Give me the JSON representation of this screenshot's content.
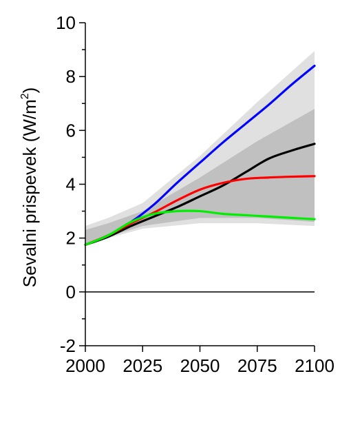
{
  "chart_data": {
    "type": "line",
    "title": "",
    "xlabel": "",
    "ylabel": "Sevalni prispevek (W/m",
    "ylabel_superscript": "2",
    "ylabel_close": ")",
    "xlim": [
      2000,
      2100
    ],
    "ylim": [
      -2,
      10
    ],
    "x_ticks": [
      2000,
      2025,
      2050,
      2075,
      2100
    ],
    "x_tick_labels": [
      "2000",
      "2025",
      "2050",
      "2075",
      "2100"
    ],
    "y_ticks": [
      -2,
      0,
      2,
      4,
      6,
      8,
      10
    ],
    "y_tick_labels": [
      "-2",
      "0",
      "2",
      "4",
      "6",
      "8",
      "10"
    ],
    "zero_line": true,
    "grid": false,
    "legend": "none",
    "bands": [
      {
        "color": "#e0e0e0",
        "x": [
          2000,
          2010,
          2025,
          2050,
          2075,
          2100
        ],
        "lower": [
          1.75,
          2.0,
          2.35,
          2.55,
          2.55,
          2.45
        ],
        "upper": [
          2.45,
          2.75,
          3.3,
          5.05,
          7.05,
          8.95
        ]
      },
      {
        "color": "#c0c0c0",
        "x": [
          2000,
          2010,
          2025,
          2050,
          2075,
          2100
        ],
        "lower": [
          1.8,
          2.05,
          2.45,
          2.75,
          2.75,
          2.6
        ],
        "upper": [
          2.3,
          2.55,
          3.0,
          4.25,
          5.6,
          6.8
        ]
      }
    ],
    "series": [
      {
        "color": "#0000ff",
        "x": [
          2000,
          2010,
          2020,
          2030,
          2040,
          2050,
          2060,
          2070,
          2080,
          2090,
          2100
        ],
        "y": [
          1.75,
          2.1,
          2.6,
          3.25,
          4.05,
          4.8,
          5.55,
          6.25,
          6.95,
          7.7,
          8.4
        ]
      },
      {
        "color": "#000000",
        "x": [
          2000,
          2010,
          2020,
          2030,
          2040,
          2050,
          2060,
          2070,
          2080,
          2090,
          2100
        ],
        "y": [
          1.75,
          2.05,
          2.45,
          2.8,
          3.15,
          3.55,
          3.95,
          4.45,
          4.95,
          5.25,
          5.5
        ]
      },
      {
        "color": "#ff0000",
        "x": [
          2000,
          2010,
          2020,
          2030,
          2040,
          2050,
          2060,
          2070,
          2080,
          2090,
          2100
        ],
        "y": [
          1.75,
          2.1,
          2.55,
          2.95,
          3.4,
          3.8,
          4.05,
          4.2,
          4.25,
          4.28,
          4.3
        ]
      },
      {
        "color": "#00ee00",
        "x": [
          2000,
          2010,
          2020,
          2030,
          2040,
          2050,
          2060,
          2070,
          2080,
          2090,
          2100
        ],
        "y": [
          1.75,
          2.1,
          2.6,
          2.9,
          3.0,
          3.0,
          2.9,
          2.85,
          2.8,
          2.75,
          2.7
        ]
      }
    ]
  }
}
